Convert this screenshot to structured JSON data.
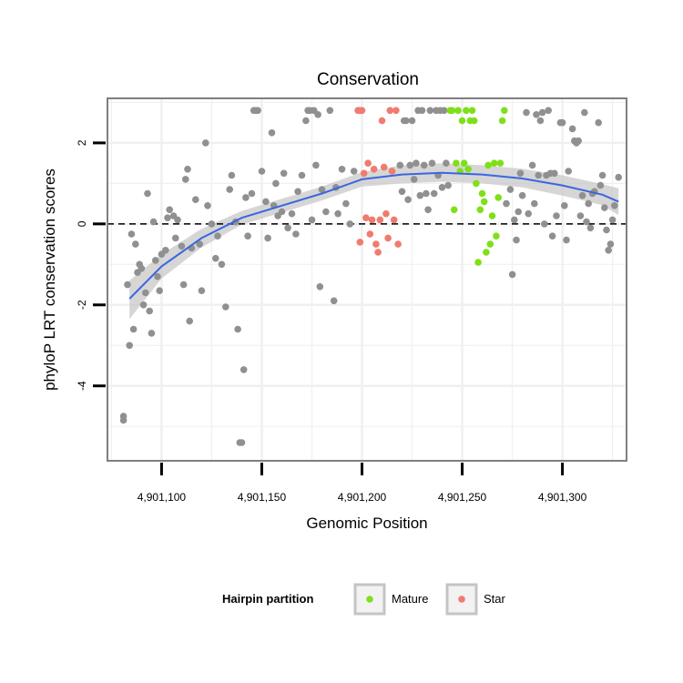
{
  "chart_data": {
    "type": "scatter",
    "title": "Conservation",
    "xlabel": "Genomic Position",
    "ylabel": "phyloP LRT conservation scores",
    "xlim": [
      4901073,
      4901332
    ],
    "ylim": [
      -5.85,
      3.1
    ],
    "x_ticks": [
      4901100,
      4901150,
      4901200,
      4901250,
      4901300
    ],
    "x_tick_labels": [
      "4,901,100",
      "4,901,150",
      "4,901,200",
      "4,901,250",
      "4,901,300"
    ],
    "y_ticks": [
      2,
      0,
      -2,
      -4
    ],
    "y_tick_labels": [
      "2",
      "0",
      "-2",
      "-4"
    ],
    "grid": true,
    "reference_line": {
      "y": 0,
      "style": "dashed",
      "color": "#000000"
    },
    "legend": {
      "title": "Hairpin partition",
      "position": "bottom",
      "entries": [
        {
          "label": "Mature",
          "color": "#7FE01A"
        },
        {
          "label": "Star",
          "color": "#F07B6E"
        }
      ]
    },
    "colors": {
      "other": "#909090",
      "Mature": "#7FE01A",
      "Star": "#F07B6E",
      "smooth": "#3A66E0",
      "band": "#C8C8C8"
    },
    "smooth": {
      "x": [
        4901084,
        4901100,
        4901120,
        4901140,
        4901160,
        4901180,
        4901200,
        4901220,
        4901240,
        4901260,
        4901280,
        4901300,
        4901320,
        4901328
      ],
      "y": [
        -1.85,
        -1.05,
        -0.35,
        0.15,
        0.45,
        0.75,
        1.1,
        1.22,
        1.26,
        1.22,
        1.12,
        0.95,
        0.72,
        0.55
      ],
      "upper": [
        -1.4,
        -0.75,
        -0.12,
        0.32,
        0.62,
        0.92,
        1.28,
        1.45,
        1.5,
        1.45,
        1.36,
        1.2,
        0.98,
        0.88
      ],
      "lower": [
        -2.35,
        -1.35,
        -0.58,
        -0.02,
        0.28,
        0.58,
        0.92,
        1.0,
        1.04,
        1.0,
        0.9,
        0.7,
        0.46,
        0.22
      ]
    },
    "points": [
      {
        "x": 4901081,
        "y": -4.75,
        "group": "other"
      },
      {
        "x": 4901081,
        "y": -4.85,
        "group": "other"
      },
      {
        "x": 4901083,
        "y": -1.5,
        "group": "other"
      },
      {
        "x": 4901084,
        "y": -3.0,
        "group": "other"
      },
      {
        "x": 4901085,
        "y": -0.25,
        "group": "other"
      },
      {
        "x": 4901086,
        "y": -2.6,
        "group": "other"
      },
      {
        "x": 4901087,
        "y": -0.5,
        "group": "other"
      },
      {
        "x": 4901088,
        "y": -1.2,
        "group": "other"
      },
      {
        "x": 4901089,
        "y": -1.0,
        "group": "other"
      },
      {
        "x": 4901090,
        "y": -1.1,
        "group": "other"
      },
      {
        "x": 4901091,
        "y": -2.0,
        "group": "other"
      },
      {
        "x": 4901092,
        "y": -1.7,
        "group": "other"
      },
      {
        "x": 4901093,
        "y": 0.75,
        "group": "other"
      },
      {
        "x": 4901094,
        "y": -2.15,
        "group": "other"
      },
      {
        "x": 4901095,
        "y": -2.7,
        "group": "other"
      },
      {
        "x": 4901096,
        "y": 0.05,
        "group": "other"
      },
      {
        "x": 4901097,
        "y": -0.9,
        "group": "other"
      },
      {
        "x": 4901098,
        "y": -1.3,
        "group": "other"
      },
      {
        "x": 4901099,
        "y": -1.65,
        "group": "other"
      },
      {
        "x": 4901100,
        "y": -0.75,
        "group": "other"
      },
      {
        "x": 4901102,
        "y": -0.65,
        "group": "other"
      },
      {
        "x": 4901103,
        "y": 0.15,
        "group": "other"
      },
      {
        "x": 4901104,
        "y": 0.35,
        "group": "other"
      },
      {
        "x": 4901106,
        "y": 0.2,
        "group": "other"
      },
      {
        "x": 4901107,
        "y": -0.35,
        "group": "other"
      },
      {
        "x": 4901108,
        "y": 0.1,
        "group": "other"
      },
      {
        "x": 4901110,
        "y": -0.55,
        "group": "other"
      },
      {
        "x": 4901111,
        "y": -1.5,
        "group": "other"
      },
      {
        "x": 4901112,
        "y": 1.1,
        "group": "other"
      },
      {
        "x": 4901113,
        "y": 1.35,
        "group": "other"
      },
      {
        "x": 4901114,
        "y": -2.4,
        "group": "other"
      },
      {
        "x": 4901115,
        "y": -0.6,
        "group": "other"
      },
      {
        "x": 4901117,
        "y": 0.6,
        "group": "other"
      },
      {
        "x": 4901119,
        "y": -0.5,
        "group": "other"
      },
      {
        "x": 4901120,
        "y": -1.65,
        "group": "other"
      },
      {
        "x": 4901122,
        "y": 2.0,
        "group": "other"
      },
      {
        "x": 4901123,
        "y": 0.45,
        "group": "other"
      },
      {
        "x": 4901125,
        "y": 0.0,
        "group": "other"
      },
      {
        "x": 4901127,
        "y": -0.85,
        "group": "other"
      },
      {
        "x": 4901128,
        "y": -0.3,
        "group": "other"
      },
      {
        "x": 4901130,
        "y": -1.0,
        "group": "other"
      },
      {
        "x": 4901132,
        "y": -2.05,
        "group": "other"
      },
      {
        "x": 4901134,
        "y": 0.85,
        "group": "other"
      },
      {
        "x": 4901135,
        "y": 1.2,
        "group": "other"
      },
      {
        "x": 4901137,
        "y": 0.05,
        "group": "other"
      },
      {
        "x": 4901138,
        "y": -2.6,
        "group": "other"
      },
      {
        "x": 4901139,
        "y": -5.4,
        "group": "other"
      },
      {
        "x": 4901140,
        "y": -5.4,
        "group": "other"
      },
      {
        "x": 4901141,
        "y": -3.6,
        "group": "other"
      },
      {
        "x": 4901142,
        "y": 0.65,
        "group": "other"
      },
      {
        "x": 4901143,
        "y": -0.3,
        "group": "other"
      },
      {
        "x": 4901145,
        "y": 0.75,
        "group": "other"
      },
      {
        "x": 4901146,
        "y": 2.8,
        "group": "other"
      },
      {
        "x": 4901147,
        "y": 2.8,
        "group": "other"
      },
      {
        "x": 4901148,
        "y": 2.8,
        "group": "other"
      },
      {
        "x": 4901150,
        "y": 1.3,
        "group": "other"
      },
      {
        "x": 4901152,
        "y": 0.55,
        "group": "other"
      },
      {
        "x": 4901153,
        "y": -0.35,
        "group": "other"
      },
      {
        "x": 4901155,
        "y": 2.25,
        "group": "other"
      },
      {
        "x": 4901156,
        "y": 0.45,
        "group": "other"
      },
      {
        "x": 4901157,
        "y": 1.0,
        "group": "other"
      },
      {
        "x": 4901158,
        "y": 0.2,
        "group": "other"
      },
      {
        "x": 4901160,
        "y": 0.3,
        "group": "other"
      },
      {
        "x": 4901161,
        "y": 1.25,
        "group": "other"
      },
      {
        "x": 4901163,
        "y": -0.1,
        "group": "other"
      },
      {
        "x": 4901165,
        "y": 0.25,
        "group": "other"
      },
      {
        "x": 4901167,
        "y": -0.25,
        "group": "other"
      },
      {
        "x": 4901168,
        "y": 0.8,
        "group": "other"
      },
      {
        "x": 4901170,
        "y": 1.2,
        "group": "other"
      },
      {
        "x": 4901172,
        "y": 2.55,
        "group": "other"
      },
      {
        "x": 4901173,
        "y": 2.8,
        "group": "other"
      },
      {
        "x": 4901174,
        "y": 2.8,
        "group": "other"
      },
      {
        "x": 4901175,
        "y": 0.1,
        "group": "other"
      },
      {
        "x": 4901176,
        "y": 2.8,
        "group": "other"
      },
      {
        "x": 4901177,
        "y": 1.45,
        "group": "other"
      },
      {
        "x": 4901178,
        "y": 2.7,
        "group": "other"
      },
      {
        "x": 4901179,
        "y": -1.55,
        "group": "other"
      },
      {
        "x": 4901180,
        "y": 0.85,
        "group": "other"
      },
      {
        "x": 4901182,
        "y": 0.3,
        "group": "other"
      },
      {
        "x": 4901184,
        "y": 2.8,
        "group": "other"
      },
      {
        "x": 4901186,
        "y": -1.9,
        "group": "other"
      },
      {
        "x": 4901187,
        "y": 0.9,
        "group": "other"
      },
      {
        "x": 4901188,
        "y": 0.25,
        "group": "other"
      },
      {
        "x": 4901190,
        "y": 1.35,
        "group": "other"
      },
      {
        "x": 4901192,
        "y": 0.5,
        "group": "other"
      },
      {
        "x": 4901194,
        "y": 0.0,
        "group": "other"
      },
      {
        "x": 4901196,
        "y": 1.3,
        "group": "other"
      },
      {
        "x": 4901198,
        "y": 2.8,
        "group": "Star"
      },
      {
        "x": 4901199,
        "y": 2.8,
        "group": "Star"
      },
      {
        "x": 4901200,
        "y": 2.8,
        "group": "Star"
      },
      {
        "x": 4901199,
        "y": -0.45,
        "group": "Star"
      },
      {
        "x": 4901201,
        "y": 1.25,
        "group": "Star"
      },
      {
        "x": 4901202,
        "y": 0.15,
        "group": "Star"
      },
      {
        "x": 4901203,
        "y": 1.5,
        "group": "Star"
      },
      {
        "x": 4901204,
        "y": -0.25,
        "group": "Star"
      },
      {
        "x": 4901205,
        "y": 0.1,
        "group": "Star"
      },
      {
        "x": 4901206,
        "y": 1.35,
        "group": "Star"
      },
      {
        "x": 4901207,
        "y": -0.5,
        "group": "Star"
      },
      {
        "x": 4901208,
        "y": -0.7,
        "group": "Star"
      },
      {
        "x": 4901209,
        "y": 0.1,
        "group": "Star"
      },
      {
        "x": 4901210,
        "y": 2.55,
        "group": "Star"
      },
      {
        "x": 4901211,
        "y": 1.4,
        "group": "Star"
      },
      {
        "x": 4901212,
        "y": 0.25,
        "group": "Star"
      },
      {
        "x": 4901213,
        "y": -0.35,
        "group": "Star"
      },
      {
        "x": 4901214,
        "y": 2.8,
        "group": "Star"
      },
      {
        "x": 4901215,
        "y": 1.3,
        "group": "Star"
      },
      {
        "x": 4901216,
        "y": 0.1,
        "group": "Star"
      },
      {
        "x": 4901217,
        "y": 2.8,
        "group": "Star"
      },
      {
        "x": 4901218,
        "y": -0.5,
        "group": "Star"
      },
      {
        "x": 4901219,
        "y": 1.45,
        "group": "other"
      },
      {
        "x": 4901220,
        "y": 0.8,
        "group": "other"
      },
      {
        "x": 4901221,
        "y": 2.55,
        "group": "other"
      },
      {
        "x": 4901222,
        "y": 2.55,
        "group": "other"
      },
      {
        "x": 4901223,
        "y": 0.6,
        "group": "other"
      },
      {
        "x": 4901224,
        "y": 1.45,
        "group": "other"
      },
      {
        "x": 4901225,
        "y": 2.55,
        "group": "other"
      },
      {
        "x": 4901226,
        "y": 1.1,
        "group": "other"
      },
      {
        "x": 4901227,
        "y": 1.5,
        "group": "other"
      },
      {
        "x": 4901228,
        "y": 2.8,
        "group": "other"
      },
      {
        "x": 4901229,
        "y": 0.7,
        "group": "other"
      },
      {
        "x": 4901230,
        "y": 2.8,
        "group": "other"
      },
      {
        "x": 4901231,
        "y": 1.45,
        "group": "other"
      },
      {
        "x": 4901232,
        "y": 0.75,
        "group": "other"
      },
      {
        "x": 4901233,
        "y": 0.35,
        "group": "other"
      },
      {
        "x": 4901234,
        "y": 2.8,
        "group": "other"
      },
      {
        "x": 4901235,
        "y": 1.5,
        "group": "other"
      },
      {
        "x": 4901236,
        "y": 0.75,
        "group": "other"
      },
      {
        "x": 4901237,
        "y": 2.8,
        "group": "other"
      },
      {
        "x": 4901238,
        "y": 1.2,
        "group": "other"
      },
      {
        "x": 4901239,
        "y": 2.8,
        "group": "other"
      },
      {
        "x": 4901240,
        "y": 0.9,
        "group": "other"
      },
      {
        "x": 4901241,
        "y": 2.8,
        "group": "other"
      },
      {
        "x": 4901242,
        "y": 1.5,
        "group": "other"
      },
      {
        "x": 4901243,
        "y": 0.95,
        "group": "other"
      },
      {
        "x": 4901244,
        "y": 2.8,
        "group": "Mature"
      },
      {
        "x": 4901245,
        "y": 2.8,
        "group": "Mature"
      },
      {
        "x": 4901246,
        "y": 0.35,
        "group": "Mature"
      },
      {
        "x": 4901247,
        "y": 1.5,
        "group": "Mature"
      },
      {
        "x": 4901248,
        "y": 2.8,
        "group": "Mature"
      },
      {
        "x": 4901249,
        "y": 1.3,
        "group": "Mature"
      },
      {
        "x": 4901250,
        "y": 2.55,
        "group": "Mature"
      },
      {
        "x": 4901251,
        "y": 1.5,
        "group": "Mature"
      },
      {
        "x": 4901252,
        "y": 2.8,
        "group": "Mature"
      },
      {
        "x": 4901253,
        "y": 1.35,
        "group": "Mature"
      },
      {
        "x": 4901254,
        "y": 2.55,
        "group": "Mature"
      },
      {
        "x": 4901255,
        "y": 2.8,
        "group": "Mature"
      },
      {
        "x": 4901256,
        "y": 2.55,
        "group": "Mature"
      },
      {
        "x": 4901257,
        "y": 1.0,
        "group": "Mature"
      },
      {
        "x": 4901258,
        "y": -0.95,
        "group": "Mature"
      },
      {
        "x": 4901259,
        "y": 0.35,
        "group": "Mature"
      },
      {
        "x": 4901260,
        "y": 0.75,
        "group": "Mature"
      },
      {
        "x": 4901261,
        "y": 0.55,
        "group": "Mature"
      },
      {
        "x": 4901262,
        "y": -0.7,
        "group": "Mature"
      },
      {
        "x": 4901263,
        "y": 1.45,
        "group": "Mature"
      },
      {
        "x": 4901264,
        "y": -0.5,
        "group": "Mature"
      },
      {
        "x": 4901265,
        "y": 0.2,
        "group": "Mature"
      },
      {
        "x": 4901266,
        "y": 1.5,
        "group": "Mature"
      },
      {
        "x": 4901267,
        "y": -0.3,
        "group": "Mature"
      },
      {
        "x": 4901268,
        "y": 0.65,
        "group": "Mature"
      },
      {
        "x": 4901269,
        "y": 1.5,
        "group": "Mature"
      },
      {
        "x": 4901270,
        "y": 2.55,
        "group": "Mature"
      },
      {
        "x": 4901271,
        "y": 2.8,
        "group": "Mature"
      },
      {
        "x": 4901272,
        "y": 0.5,
        "group": "other"
      },
      {
        "x": 4901274,
        "y": 0.85,
        "group": "other"
      },
      {
        "x": 4901275,
        "y": -1.25,
        "group": "other"
      },
      {
        "x": 4901276,
        "y": 0.1,
        "group": "other"
      },
      {
        "x": 4901277,
        "y": -0.4,
        "group": "other"
      },
      {
        "x": 4901278,
        "y": 0.3,
        "group": "other"
      },
      {
        "x": 4901279,
        "y": 1.25,
        "group": "other"
      },
      {
        "x": 4901280,
        "y": 0.7,
        "group": "other"
      },
      {
        "x": 4901282,
        "y": 2.75,
        "group": "other"
      },
      {
        "x": 4901283,
        "y": 0.25,
        "group": "other"
      },
      {
        "x": 4901285,
        "y": 1.45,
        "group": "other"
      },
      {
        "x": 4901286,
        "y": 0.5,
        "group": "other"
      },
      {
        "x": 4901287,
        "y": 2.7,
        "group": "other"
      },
      {
        "x": 4901288,
        "y": 1.2,
        "group": "other"
      },
      {
        "x": 4901289,
        "y": 2.55,
        "group": "other"
      },
      {
        "x": 4901290,
        "y": 2.75,
        "group": "other"
      },
      {
        "x": 4901291,
        "y": 0.0,
        "group": "other"
      },
      {
        "x": 4901292,
        "y": 1.2,
        "group": "other"
      },
      {
        "x": 4901293,
        "y": 2.8,
        "group": "other"
      },
      {
        "x": 4901294,
        "y": 1.25,
        "group": "other"
      },
      {
        "x": 4901295,
        "y": -0.3,
        "group": "other"
      },
      {
        "x": 4901296,
        "y": 1.25,
        "group": "other"
      },
      {
        "x": 4901297,
        "y": 0.2,
        "group": "other"
      },
      {
        "x": 4901299,
        "y": 2.5,
        "group": "other"
      },
      {
        "x": 4901300,
        "y": 2.5,
        "group": "other"
      },
      {
        "x": 4901301,
        "y": 0.45,
        "group": "other"
      },
      {
        "x": 4901302,
        "y": -0.4,
        "group": "other"
      },
      {
        "x": 4901303,
        "y": 1.3,
        "group": "other"
      },
      {
        "x": 4901305,
        "y": 2.35,
        "group": "other"
      },
      {
        "x": 4901306,
        "y": 2.05,
        "group": "other"
      },
      {
        "x": 4901307,
        "y": 2.0,
        "group": "other"
      },
      {
        "x": 4901308,
        "y": 2.05,
        "group": "other"
      },
      {
        "x": 4901309,
        "y": 0.2,
        "group": "other"
      },
      {
        "x": 4901310,
        "y": 0.7,
        "group": "other"
      },
      {
        "x": 4901311,
        "y": 2.75,
        "group": "other"
      },
      {
        "x": 4901312,
        "y": 0.05,
        "group": "other"
      },
      {
        "x": 4901313,
        "y": 0.5,
        "group": "other"
      },
      {
        "x": 4901314,
        "y": -0.1,
        "group": "other"
      },
      {
        "x": 4901315,
        "y": 0.75,
        "group": "other"
      },
      {
        "x": 4901316,
        "y": 0.8,
        "group": "other"
      },
      {
        "x": 4901318,
        "y": 2.5,
        "group": "other"
      },
      {
        "x": 4901319,
        "y": 0.95,
        "group": "other"
      },
      {
        "x": 4901320,
        "y": 1.2,
        "group": "other"
      },
      {
        "x": 4901321,
        "y": 0.4,
        "group": "other"
      },
      {
        "x": 4901322,
        "y": -0.15,
        "group": "other"
      },
      {
        "x": 4901323,
        "y": -0.65,
        "group": "other"
      },
      {
        "x": 4901324,
        "y": -0.5,
        "group": "other"
      },
      {
        "x": 4901325,
        "y": 0.1,
        "group": "other"
      },
      {
        "x": 4901326,
        "y": 0.45,
        "group": "other"
      },
      {
        "x": 4901328,
        "y": 1.15,
        "group": "other"
      }
    ]
  }
}
